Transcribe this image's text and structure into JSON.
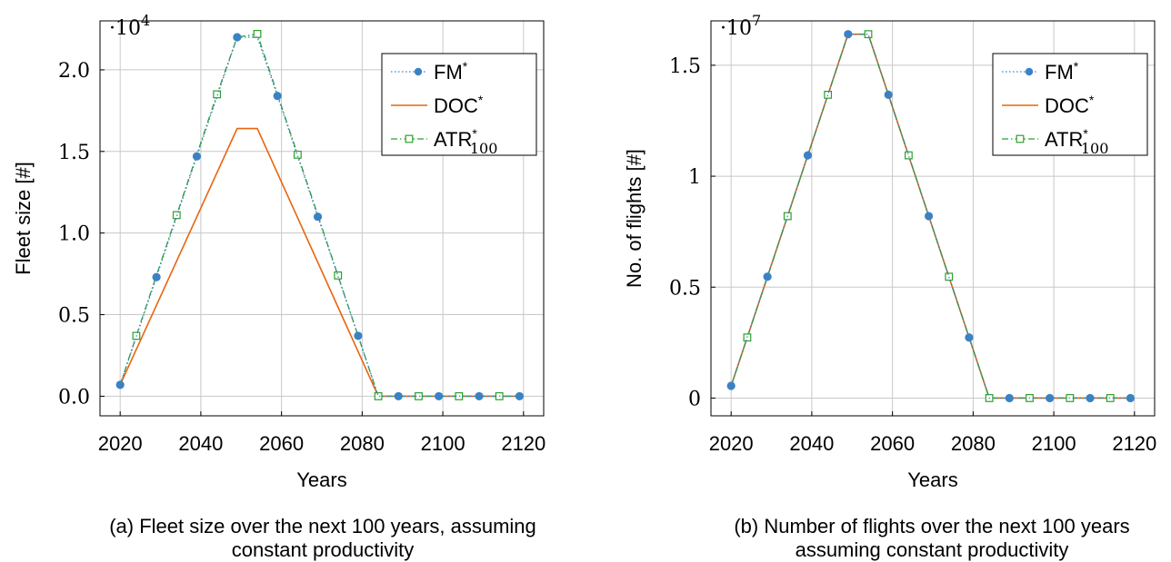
{
  "chart_data": [
    {
      "type": "line",
      "xlabel": "Years",
      "ylabel": "Fleet size [#]",
      "multiplier_label": "·10",
      "multiplier_exp": "4",
      "caption_line1": "(a) Fleet size over the next 100 years, assuming",
      "caption_line2": "constant productivity",
      "xlim": [
        2015,
        2125
      ],
      "ylim": [
        -0.12,
        2.3
      ],
      "x_ticks": [
        2020,
        2040,
        2060,
        2080,
        2100,
        2120
      ],
      "y_ticks": [
        0.0,
        0.5,
        1.0,
        1.5,
        2.0
      ],
      "y_tick_labels": [
        "0.0",
        "0.5",
        "1.0",
        "1.5",
        "2.0"
      ],
      "grid": true,
      "legend_position": "top-right",
      "series": [
        {
          "name": "FM*",
          "name_base": "FM",
          "name_sup": "*",
          "name_sub": "",
          "color": "#3b82c4",
          "style": "dotted-circle",
          "x": [
            2020,
            2029,
            2039,
            2049,
            2054,
            2059,
            2069,
            2079,
            2084,
            2089,
            2099,
            2109,
            2119
          ],
          "y": [
            0.07,
            0.73,
            1.47,
            2.2,
            2.2,
            1.84,
            1.1,
            0.37,
            0.0,
            0.0,
            0.0,
            0.0,
            0.0
          ],
          "markers_x": [
            2020,
            2029,
            2039,
            2049,
            2059,
            2069,
            2079,
            2089,
            2099,
            2109,
            2119
          ]
        },
        {
          "name": "DOC*",
          "name_base": "DOC",
          "name_sup": "*",
          "name_sub": "",
          "color": "#e8650f",
          "style": "solid",
          "x": [
            2020,
            2049,
            2054,
            2084,
            2119
          ],
          "y": [
            0.07,
            1.64,
            1.64,
            0.0,
            0.0
          ],
          "markers_x": []
        },
        {
          "name": "ATR*100",
          "name_base": "ATR",
          "name_sup": "*",
          "name_sub": "100",
          "color": "#2ca02c",
          "style": "dashed-square",
          "x": [
            2020,
            2024,
            2034,
            2044,
            2049,
            2054,
            2064,
            2074,
            2084,
            2094,
            2104,
            2114,
            2119
          ],
          "y": [
            0.07,
            0.37,
            1.11,
            1.85,
            2.2,
            2.22,
            1.48,
            0.74,
            0.0,
            0.0,
            0.0,
            0.0,
            0.0
          ],
          "markers_x": [
            2024,
            2034,
            2044,
            2054,
            2064,
            2074,
            2084,
            2094,
            2104,
            2114
          ]
        }
      ]
    },
    {
      "type": "line",
      "xlabel": "Years",
      "ylabel": "No. of flights [#]",
      "multiplier_label": "·10",
      "multiplier_exp": "7",
      "caption_line1": "(b) Number of flights over the next 100 years",
      "caption_line2": "assuming constant productivity",
      "xlim": [
        2015,
        2125
      ],
      "ylim": [
        -0.08,
        1.7
      ],
      "x_ticks": [
        2020,
        2040,
        2060,
        2080,
        2100,
        2120
      ],
      "y_ticks": [
        0,
        0.5,
        1,
        1.5
      ],
      "y_tick_labels": [
        "0",
        "0.5",
        "1",
        "1.5"
      ],
      "grid": true,
      "legend_position": "top-right",
      "series": [
        {
          "name": "FM*",
          "name_base": "FM",
          "name_sup": "*",
          "name_sub": "",
          "color": "#3b82c4",
          "style": "dotted-circle",
          "x": [
            2020,
            2029,
            2039,
            2049,
            2054,
            2059,
            2069,
            2079,
            2084,
            2089,
            2099,
            2109,
            2119
          ],
          "y": [
            0.055,
            0.547,
            1.094,
            1.64,
            1.64,
            1.367,
            0.82,
            0.273,
            0.0,
            0.0,
            0.0,
            0.0,
            0.0
          ],
          "markers_x": [
            2020,
            2029,
            2039,
            2049,
            2059,
            2069,
            2079,
            2089,
            2099,
            2109,
            2119
          ]
        },
        {
          "name": "DOC*",
          "name_base": "DOC",
          "name_sup": "*",
          "name_sub": "",
          "color": "#e8650f",
          "style": "solid",
          "x": [
            2020,
            2049,
            2054,
            2084,
            2119
          ],
          "y": [
            0.055,
            1.64,
            1.64,
            0.0,
            0.0
          ],
          "markers_x": []
        },
        {
          "name": "ATR*100",
          "name_base": "ATR",
          "name_sup": "*",
          "name_sub": "100",
          "color": "#2ca02c",
          "style": "dashed-square",
          "x": [
            2020,
            2024,
            2034,
            2044,
            2049,
            2054,
            2064,
            2074,
            2084,
            2094,
            2104,
            2114,
            2119
          ],
          "y": [
            0.055,
            0.273,
            0.82,
            1.367,
            1.64,
            1.64,
            1.094,
            0.547,
            0.0,
            0.0,
            0.0,
            0.0,
            0.0
          ],
          "markers_x": [
            2024,
            2034,
            2044,
            2054,
            2064,
            2074,
            2084,
            2094,
            2104,
            2114
          ]
        }
      ]
    }
  ]
}
